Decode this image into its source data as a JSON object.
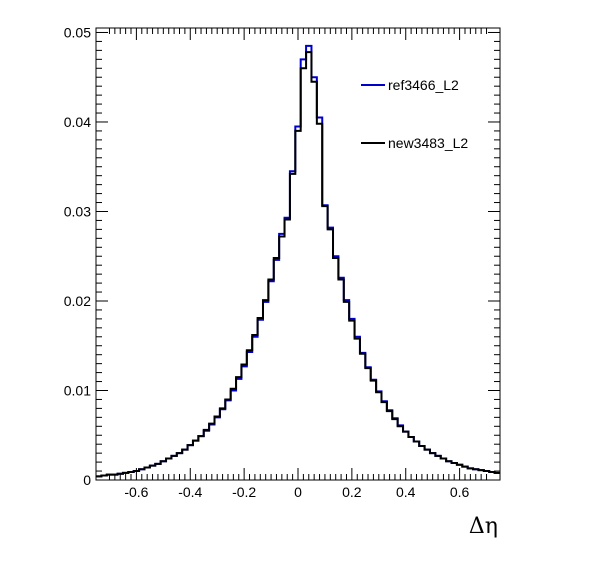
{
  "chart_data": {
    "type": "line",
    "style": "step-histogram",
    "title": "",
    "xlabel": "Δη",
    "ylabel": "",
    "xlim": [
      -0.75,
      0.75
    ],
    "ylim": [
      0,
      0.0505
    ],
    "x_ticks": [
      -0.6,
      -0.4,
      -0.2,
      0,
      0.2,
      0.4,
      0.6
    ],
    "x_tick_labels": [
      "-0.6",
      "-0.4",
      "-0.2",
      "0",
      "0.2",
      "0.4",
      "0.6"
    ],
    "y_ticks": [
      0,
      0.01,
      0.02,
      0.03,
      0.04,
      0.05
    ],
    "y_tick_labels": [
      "0",
      "0.01",
      "0.02",
      "0.03",
      "0.04",
      "0.05"
    ],
    "grid": false,
    "legend_position": "top-right",
    "bin_edges_range": [
      -0.75,
      0.75
    ],
    "bin_width": 0.02,
    "series": [
      {
        "name": "ref3466_L2",
        "color": "#0000cc",
        "values": [
          0.0004,
          0.0005,
          0.0006,
          0.0006,
          0.0007,
          0.0008,
          0.0009,
          0.001,
          0.0012,
          0.0014,
          0.0016,
          0.0018,
          0.0021,
          0.0024,
          0.0027,
          0.003,
          0.0034,
          0.0039,
          0.0044,
          0.0049,
          0.0055,
          0.0062,
          0.007,
          0.0079,
          0.0089,
          0.01,
          0.0113,
          0.0127,
          0.0143,
          0.016,
          0.0179,
          0.0199,
          0.0222,
          0.0246,
          0.0275,
          0.0293,
          0.0345,
          0.0395,
          0.047,
          0.0485,
          0.045,
          0.0405,
          0.0307,
          0.0282,
          0.025,
          0.0226,
          0.0201,
          0.018,
          0.016,
          0.0142,
          0.0126,
          0.0112,
          0.0099,
          0.0088,
          0.0078,
          0.0069,
          0.0061,
          0.0054,
          0.0048,
          0.0043,
          0.0038,
          0.0034,
          0.003,
          0.0027,
          0.0024,
          0.0021,
          0.0019,
          0.0017,
          0.0015,
          0.0013,
          0.0012,
          0.0011,
          0.001,
          0.0009,
          0.0008
        ]
      },
      {
        "name": "new3483_L2",
        "color": "#000000",
        "values": [
          0.0004,
          0.0005,
          0.0006,
          0.0006,
          0.0007,
          0.0008,
          0.0009,
          0.001,
          0.0012,
          0.0014,
          0.0016,
          0.0018,
          0.0021,
          0.0024,
          0.0027,
          0.003,
          0.0034,
          0.0039,
          0.0044,
          0.0049,
          0.0056,
          0.0063,
          0.0071,
          0.008,
          0.009,
          0.0102,
          0.0115,
          0.0129,
          0.0145,
          0.0162,
          0.0181,
          0.0201,
          0.0224,
          0.0248,
          0.0272,
          0.0291,
          0.0342,
          0.039,
          0.046,
          0.0478,
          0.0445,
          0.0398,
          0.0306,
          0.028,
          0.0248,
          0.0224,
          0.0199,
          0.0178,
          0.0158,
          0.0141,
          0.0125,
          0.0111,
          0.0098,
          0.0087,
          0.0077,
          0.0068,
          0.006,
          0.0054,
          0.0048,
          0.0043,
          0.0038,
          0.0034,
          0.003,
          0.0027,
          0.0024,
          0.0021,
          0.0019,
          0.0017,
          0.0015,
          0.0013,
          0.0012,
          0.0011,
          0.001,
          0.0009,
          0.0008
        ]
      }
    ]
  }
}
